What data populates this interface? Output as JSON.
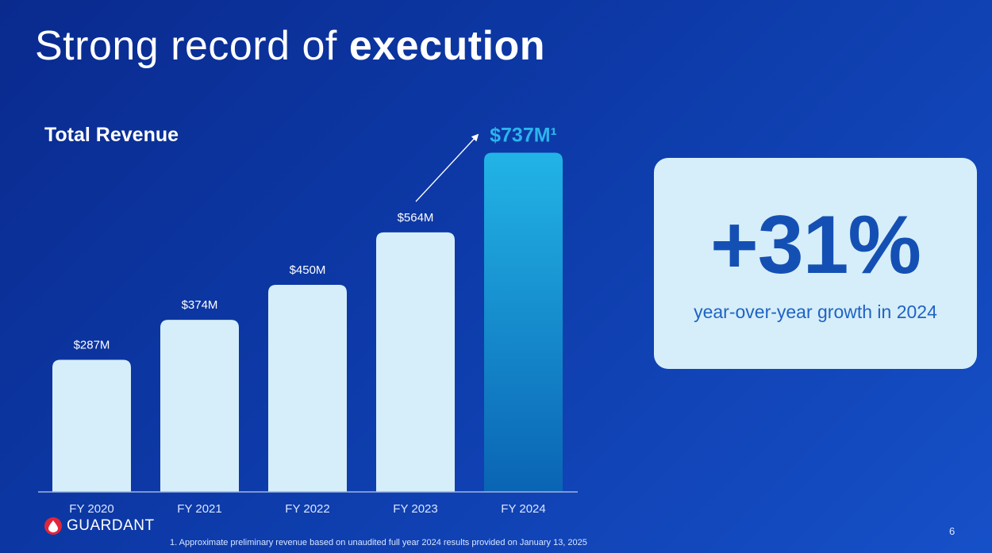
{
  "slide": {
    "title_regular": "Strong record of ",
    "title_bold": "execution",
    "page_number": "6",
    "footnote": "1. Approximate preliminary revenue based on unaudited full year 2024 results provided on January 13, 2025",
    "logo_text": "GUARDANT",
    "logo_icon": "blood-drop-icon"
  },
  "kpi": {
    "value": "+31%",
    "caption": "year-over-year growth in 2024"
  },
  "chart_data": {
    "type": "bar",
    "title": "Total Revenue",
    "categories": [
      "FY 2020",
      "FY 2021",
      "FY 2022",
      "FY 2023",
      "FY 2024"
    ],
    "values": [
      287,
      374,
      450,
      564,
      737
    ],
    "value_labels": [
      "$287M",
      "$374M",
      "$450M",
      "$564M",
      "$737M¹"
    ],
    "unit": "$M",
    "highlight_index": 4,
    "annotation": "growth arrow from FY 2023 to FY 2024",
    "colors": {
      "bar": "#d6eef9",
      "highlight_top": "#22b4e6",
      "highlight_bottom": "#0a64b4",
      "label": "#ffffff",
      "highlight_label": "#2bb5ec",
      "axis": "#9fb4e0"
    }
  }
}
